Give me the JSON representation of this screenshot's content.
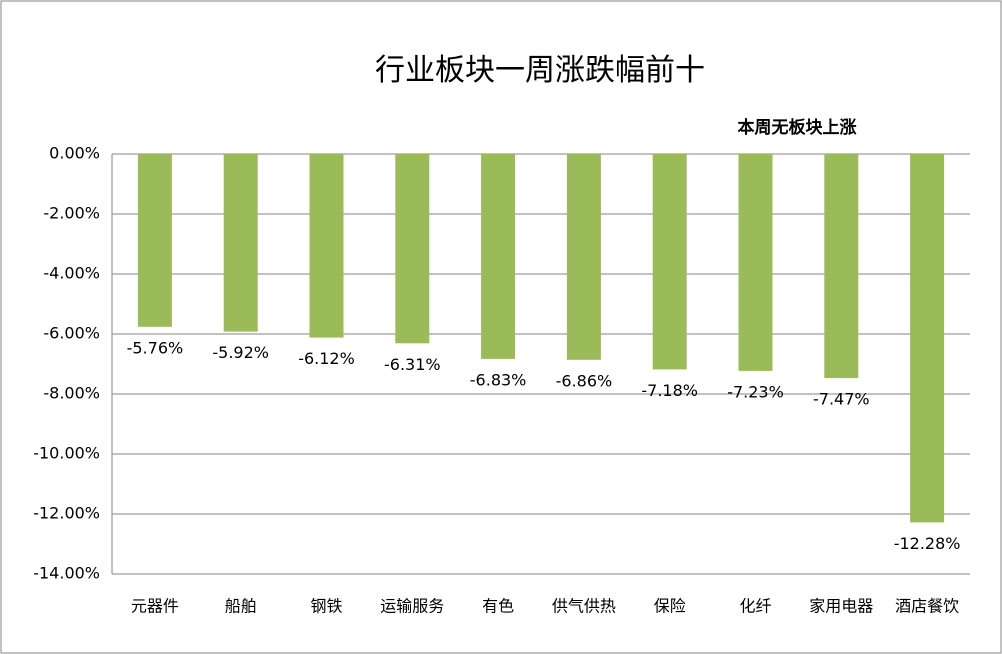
{
  "chart_data": {
    "type": "bar",
    "title": "行业板块一周涨跌幅前十",
    "annotation": "本周无板块上涨",
    "categories": [
      "元器件",
      "船舶",
      "钢铁",
      "运输服务",
      "有色",
      "供气供热",
      "保险",
      "化纤",
      "家用电器",
      "酒店餐饮"
    ],
    "values": [
      -5.76,
      -5.92,
      -6.12,
      -6.31,
      -6.83,
      -6.86,
      -7.18,
      -7.23,
      -7.47,
      -12.28
    ],
    "value_labels": [
      "-5.76%",
      "-5.92%",
      "-6.12%",
      "-6.31%",
      "-6.83%",
      "-6.86%",
      "-7.18%",
      "-7.23%",
      "-7.47%",
      "-12.28%"
    ],
    "color": "#9bbb59",
    "ylim": [
      -14,
      0
    ],
    "yticks": [
      {
        "value": 0,
        "label": "0.00%"
      },
      {
        "value": -2,
        "label": "-2.00%"
      },
      {
        "value": -4,
        "label": "-4.00%"
      },
      {
        "value": -6,
        "label": "-6.00%"
      },
      {
        "value": -8,
        "label": "-8.00%"
      },
      {
        "value": -10,
        "label": "-10.00%"
      },
      {
        "value": -12,
        "label": "-12.00%"
      },
      {
        "value": -14,
        "label": "-14.00%"
      }
    ],
    "grid": true
  }
}
